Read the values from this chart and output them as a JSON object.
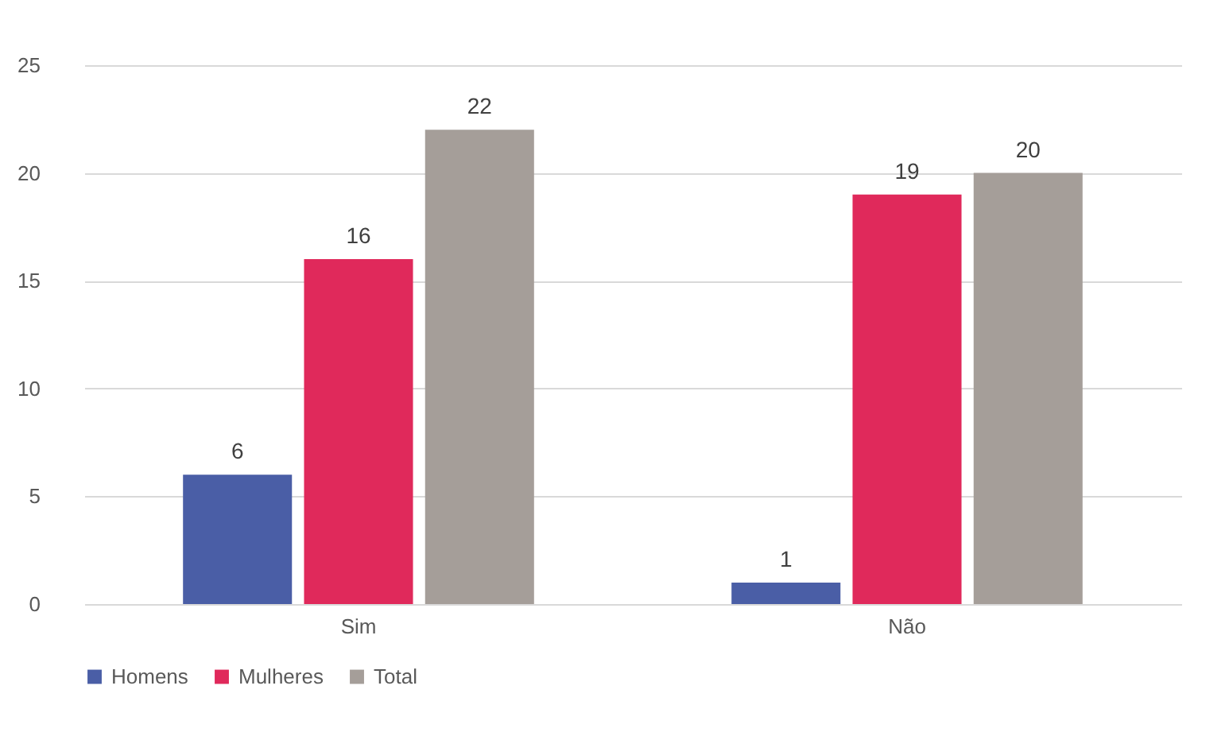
{
  "chart_data": {
    "type": "bar",
    "categories": [
      "Sim",
      "Não"
    ],
    "series": [
      {
        "name": "Homens",
        "color": "#4a5ea6",
        "values": [
          6,
          1
        ]
      },
      {
        "name": "Mulheres",
        "color": "#e0295b",
        "values": [
          16,
          19
        ]
      },
      {
        "name": "Total",
        "color": "#a59e99",
        "values": [
          22,
          20
        ]
      }
    ],
    "ylim": [
      0,
      25
    ],
    "yticks": [
      0,
      5,
      10,
      15,
      20,
      25
    ],
    "grid": "y",
    "legend": "bottom",
    "data_labels": true
  }
}
